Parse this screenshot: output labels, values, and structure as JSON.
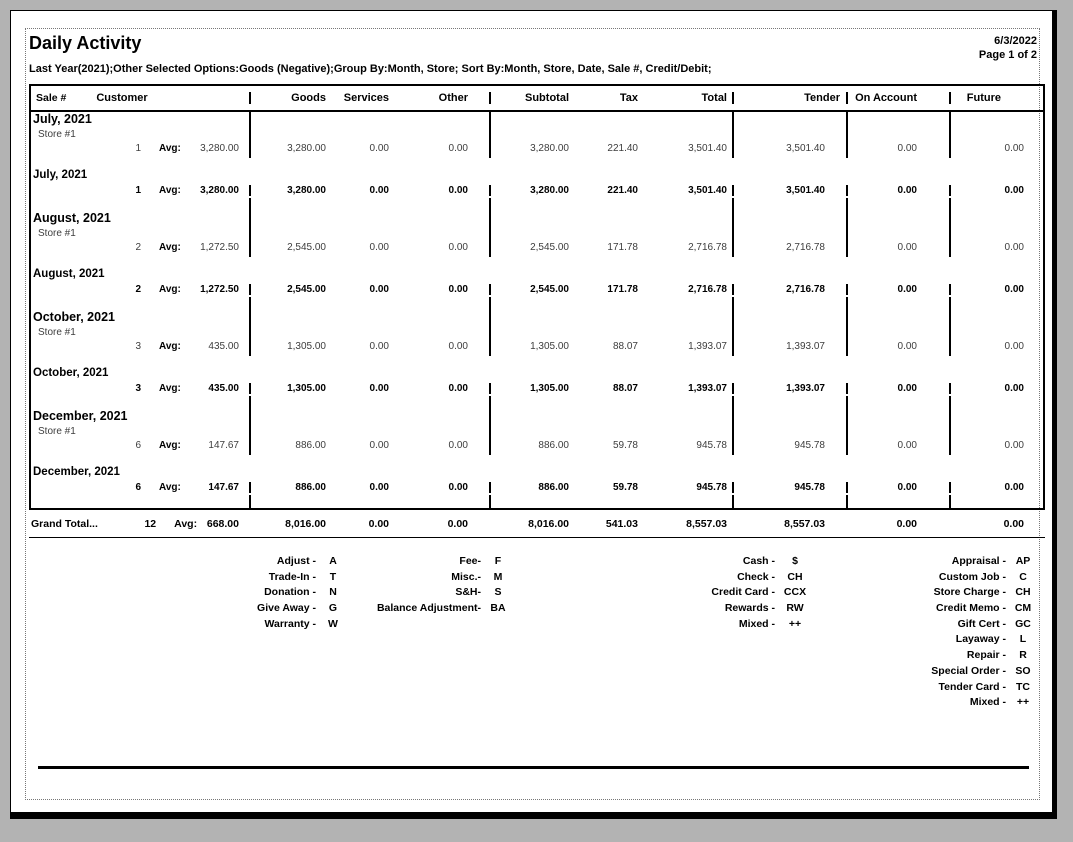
{
  "header": {
    "title": "Daily Activity",
    "filter_line": "Last Year(2021);Other Selected Options:Goods (Negative);Group By:Month, Store; Sort By:Month, Store, Date, Sale #, Credit/Debit;",
    "date": "6/3/2022",
    "page_indicator": "Page 1 of 2"
  },
  "table": {
    "columns": {
      "sale": "Sale #",
      "customer": "Customer",
      "goods": "Goods",
      "services": "Services",
      "other": "Other",
      "subtotal": "Subtotal",
      "tax": "Tax",
      "total": "Total",
      "tender": "Tender",
      "on_account": "On Account",
      "future": "Future"
    },
    "groups": [
      {
        "month": "July, 2021",
        "store": "Store #1",
        "store_row": {
          "count": "1",
          "avg_label": "Avg:",
          "avg": "3,280.00",
          "goods": "3,280.00",
          "services": "0.00",
          "other": "0.00",
          "subtotal": "3,280.00",
          "tax": "221.40",
          "total": "3,501.40",
          "tender": "3,501.40",
          "on_account": "0.00",
          "future": "0.00"
        },
        "summary_label": "July, 2021",
        "summary_row": {
          "count": "1",
          "avg_label": "Avg:",
          "avg": "3,280.00",
          "goods": "3,280.00",
          "services": "0.00",
          "other": "0.00",
          "subtotal": "3,280.00",
          "tax": "221.40",
          "total": "3,501.40",
          "tender": "3,501.40",
          "on_account": "0.00",
          "future": "0.00"
        }
      },
      {
        "month": "August, 2021",
        "store": "Store #1",
        "store_row": {
          "count": "2",
          "avg_label": "Avg:",
          "avg": "1,272.50",
          "goods": "2,545.00",
          "services": "0.00",
          "other": "0.00",
          "subtotal": "2,545.00",
          "tax": "171.78",
          "total": "2,716.78",
          "tender": "2,716.78",
          "on_account": "0.00",
          "future": "0.00"
        },
        "summary_label": "August, 2021",
        "summary_row": {
          "count": "2",
          "avg_label": "Avg:",
          "avg": "1,272.50",
          "goods": "2,545.00",
          "services": "0.00",
          "other": "0.00",
          "subtotal": "2,545.00",
          "tax": "171.78",
          "total": "2,716.78",
          "tender": "2,716.78",
          "on_account": "0.00",
          "future": "0.00"
        }
      },
      {
        "month": "October, 2021",
        "store": "Store #1",
        "store_row": {
          "count": "3",
          "avg_label": "Avg:",
          "avg": "435.00",
          "goods": "1,305.00",
          "services": "0.00",
          "other": "0.00",
          "subtotal": "1,305.00",
          "tax": "88.07",
          "total": "1,393.07",
          "tender": "1,393.07",
          "on_account": "0.00",
          "future": "0.00"
        },
        "summary_label": "October, 2021",
        "summary_row": {
          "count": "3",
          "avg_label": "Avg:",
          "avg": "435.00",
          "goods": "1,305.00",
          "services": "0.00",
          "other": "0.00",
          "subtotal": "1,305.00",
          "tax": "88.07",
          "total": "1,393.07",
          "tender": "1,393.07",
          "on_account": "0.00",
          "future": "0.00"
        }
      },
      {
        "month": "December, 2021",
        "store": "Store #1",
        "store_row": {
          "count": "6",
          "avg_label": "Avg:",
          "avg": "147.67",
          "goods": "886.00",
          "services": "0.00",
          "other": "0.00",
          "subtotal": "886.00",
          "tax": "59.78",
          "total": "945.78",
          "tender": "945.78",
          "on_account": "0.00",
          "future": "0.00"
        },
        "summary_label": "December, 2021",
        "summary_row": {
          "count": "6",
          "avg_label": "Avg:",
          "avg": "147.67",
          "goods": "886.00",
          "services": "0.00",
          "other": "0.00",
          "subtotal": "886.00",
          "tax": "59.78",
          "total": "945.78",
          "tender": "945.78",
          "on_account": "0.00",
          "future": "0.00"
        }
      }
    ],
    "grand_total": {
      "label": "Grand Total...",
      "count": "12",
      "avg_label": "Avg:",
      "avg": "668.00",
      "goods": "8,016.00",
      "services": "0.00",
      "other": "0.00",
      "subtotal": "8,016.00",
      "tax": "541.03",
      "total": "8,557.03",
      "tender": "8,557.03",
      "on_account": "0.00",
      "future": "0.00"
    }
  },
  "legend": {
    "col1": [
      {
        "name": "Adjust -",
        "code": "A"
      },
      {
        "name": "Trade-In -",
        "code": "T"
      },
      {
        "name": "Donation -",
        "code": "N"
      },
      {
        "name": "Give Away -",
        "code": "G"
      },
      {
        "name": "Warranty -",
        "code": "W"
      }
    ],
    "col2": [
      {
        "name": "Fee-",
        "code": "F"
      },
      {
        "name": "Misc.-",
        "code": "M"
      },
      {
        "name": "S&H-",
        "code": "S"
      },
      {
        "name": "Balance Adjustment-",
        "code": "BA"
      }
    ],
    "col3": [
      {
        "name": "Cash -",
        "code": "$"
      },
      {
        "name": "Check -",
        "code": "CH"
      },
      {
        "name": "Credit Card -",
        "code": "CCX"
      },
      {
        "name": "Rewards -",
        "code": "RW"
      },
      {
        "name": "Mixed -",
        "code": "++"
      }
    ],
    "col4": [
      {
        "name": "Appraisal -",
        "code": "AP"
      },
      {
        "name": "Custom Job -",
        "code": "C"
      },
      {
        "name": "Store Charge -",
        "code": "CH"
      },
      {
        "name": "Credit Memo -",
        "code": "CM"
      },
      {
        "name": "Gift Cert -",
        "code": "GC"
      },
      {
        "name": "Layaway -",
        "code": "L"
      },
      {
        "name": "Repair -",
        "code": "R"
      },
      {
        "name": "Special Order -",
        "code": "SO"
      },
      {
        "name": "Tender Card -",
        "code": "TC"
      },
      {
        "name": "Mixed -",
        "code": "++"
      }
    ]
  }
}
